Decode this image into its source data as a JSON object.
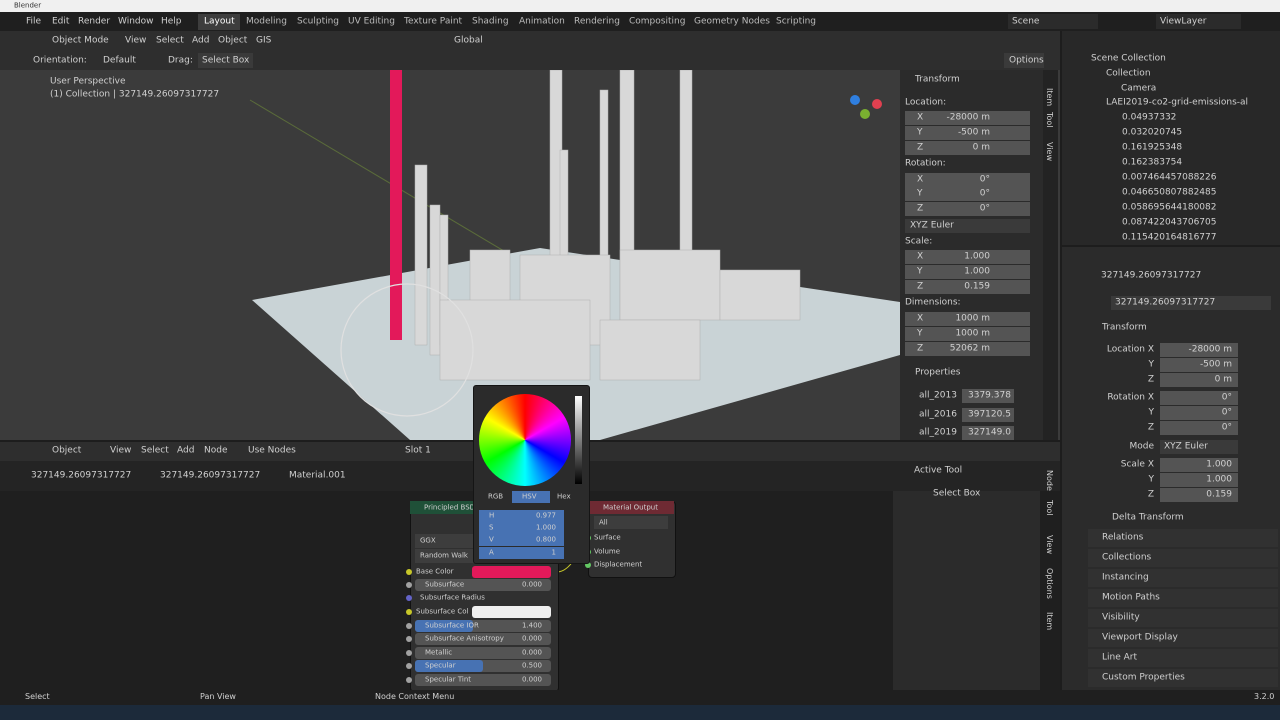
{
  "app_title": "Blender",
  "menu": [
    "File",
    "Edit",
    "Render",
    "Window",
    "Help"
  ],
  "workspaces": [
    "Layout",
    "Modeling",
    "Sculpting",
    "UV Editing",
    "Texture Paint",
    "Shading",
    "Animation",
    "Rendering",
    "Compositing",
    "Geometry Nodes",
    "Scripting"
  ],
  "scene": "Scene",
  "view_layer": "ViewLayer",
  "viewport_header": {
    "mode": "Object Mode",
    "menus": [
      "View",
      "Select",
      "Add",
      "Object",
      "GIS"
    ],
    "orientation": "Global"
  },
  "tool_settings": {
    "orientation_label": "Orientation:",
    "orientation": "Default",
    "drag_label": "Drag:",
    "drag": "Select Box",
    "options": "Options"
  },
  "viewport_info": [
    "User Perspective",
    "(1) Collection | 327149.26097317727"
  ],
  "n_panel": {
    "tabs": [
      "Item",
      "Tool",
      "View"
    ],
    "transform": "Transform",
    "location_label": "Location:",
    "location": [
      [
        "X",
        "-28000 m"
      ],
      [
        "Y",
        "-500 m"
      ],
      [
        "Z",
        "0 m"
      ]
    ],
    "rotation_label": "Rotation:",
    "rotation": [
      [
        "X",
        "0°"
      ],
      [
        "Y",
        "0°"
      ],
      [
        "Z",
        "0°"
      ]
    ],
    "rotation_mode": "XYZ Euler",
    "scale_label": "Scale:",
    "scale": [
      [
        "X",
        "1.000"
      ],
      [
        "Y",
        "1.000"
      ],
      [
        "Z",
        "0.159"
      ]
    ],
    "dimensions_label": "Dimensions:",
    "dimensions": [
      [
        "X",
        "1000 m"
      ],
      [
        "Y",
        "1000 m"
      ],
      [
        "Z",
        "52062 m"
      ]
    ],
    "properties": "Properties",
    "props": [
      [
        "all_2013",
        "3379.378"
      ],
      [
        "all_2016",
        "397120.5"
      ],
      [
        "all_2019",
        "327149.0"
      ]
    ]
  },
  "outliner": {
    "root": "Scene Collection",
    "collection": "Collection",
    "camera": "Camera",
    "layer": "LAEI2019-co2-grid-emissions-al",
    "items": [
      "0.04937332",
      "0.032020745",
      "0.161925348",
      "0.162383754",
      "0.007464457088226",
      "0.046650807882485",
      "0.058695644180082",
      "0.087422043706705",
      "0.115420164816777"
    ]
  },
  "properties_editor": {
    "object": "327149.26097317727",
    "data": "327149.26097317727",
    "transform": "Transform",
    "location": [
      [
        "Location X",
        "-28000 m"
      ],
      [
        "Y",
        "-500 m"
      ],
      [
        "Z",
        "0 m"
      ]
    ],
    "rotation": [
      [
        "Rotation X",
        "0°"
      ],
      [
        "Y",
        "0°"
      ],
      [
        "Z",
        "0°"
      ]
    ],
    "mode": [
      "Mode",
      "XYZ Euler"
    ],
    "scale": [
      [
        "Scale X",
        "1.000"
      ],
      [
        "Y",
        "1.000"
      ],
      [
        "Z",
        "0.159"
      ]
    ],
    "panels": [
      "Delta Transform",
      "Relations",
      "Collections",
      "Instancing",
      "Motion Paths",
      "Visibility",
      "Viewport Display",
      "Line Art",
      "Custom Properties"
    ]
  },
  "node_header": {
    "type": "Object",
    "menus": [
      "View",
      "Select",
      "Add",
      "Node"
    ],
    "use_nodes": "Use Nodes",
    "slot": "Slot 1"
  },
  "breadcrumbs": [
    "327149.26097317727",
    "327149.26097317727",
    "Material.001"
  ],
  "active_tool": {
    "title": "Active Tool",
    "tool": "Select Box",
    "tabs": [
      "Node",
      "Tool",
      "View",
      "Options",
      "Item"
    ]
  },
  "color_picker": {
    "modes": [
      "RGB",
      "HSV",
      "Hex"
    ],
    "fields": [
      [
        "H",
        "0.977"
      ],
      [
        "S",
        "1.000"
      ],
      [
        "V",
        "0.800"
      ],
      [
        "A",
        "1"
      ]
    ]
  },
  "bsdf": {
    "title": "Principled BSDF",
    "distribution": "GGX",
    "subsurface_method": "Random Walk",
    "inputs": [
      {
        "label": "Base Color"
      },
      {
        "label": "Subsurface",
        "value": "0.000"
      },
      {
        "label": "Subsurface Radius"
      },
      {
        "label": "Subsurface Col"
      },
      {
        "label": "Subsurface IOR",
        "value": "1.400"
      },
      {
        "label": "Subsurface Anisotropy",
        "value": "0.000"
      },
      {
        "label": "Metallic",
        "value": "0.000"
      },
      {
        "label": "Specular",
        "value": "0.500"
      },
      {
        "label": "Specular Tint",
        "value": "0.000"
      }
    ]
  },
  "material_output": {
    "title": "Material Output",
    "target": "All",
    "inputs": [
      "Surface",
      "Volume",
      "Displacement"
    ]
  },
  "status_bar": {
    "items": [
      "Select",
      "Pan View",
      "Node Context Menu"
    ],
    "version": "3.2.0"
  }
}
